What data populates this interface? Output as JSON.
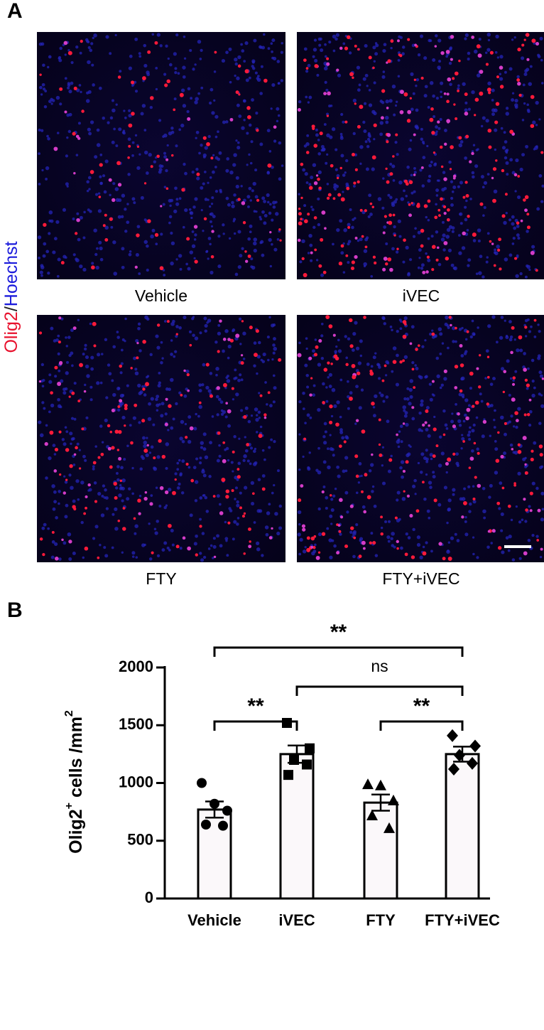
{
  "panel_a": {
    "label": "A",
    "stain_label": [
      "Olig2",
      "/",
      "Hoechst"
    ],
    "stain_colors": [
      "#e8112d",
      "#222222",
      "#1a1adb"
    ],
    "captions": [
      "Vehicle",
      "iVEC",
      "FTY",
      "FTY+iVEC"
    ]
  },
  "chart_data": {
    "type": "bar",
    "panel_label": "B",
    "ylabel": [
      "Olig2",
      "+",
      " cells /mm",
      "2"
    ],
    "categories": [
      "Vehicle",
      "iVEC",
      "FTY",
      "FTY+iVEC"
    ],
    "values": [
      770,
      1250,
      830,
      1250
    ],
    "errors": [
      70,
      75,
      70,
      65
    ],
    "points": [
      [
        1000,
        820,
        760,
        640,
        630
      ],
      [
        1520,
        1300,
        1200,
        1160,
        1070
      ],
      [
        990,
        980,
        850,
        720,
        610
      ],
      [
        1410,
        1320,
        1240,
        1170,
        1120
      ]
    ],
    "markers": [
      "circle",
      "square",
      "triangle",
      "diamond"
    ],
    "color": "#fbf8fa",
    "ylim": [
      0,
      2000
    ],
    "yticks": [
      0,
      500,
      1000,
      1500,
      2000
    ],
    "comparisons": [
      {
        "from": 0,
        "to": 3,
        "label": "**"
      },
      {
        "from": 1,
        "to": 3,
        "label": "ns"
      },
      {
        "from": 0,
        "to": 1,
        "label": "**"
      },
      {
        "from": 2,
        "to": 3,
        "label": "**"
      }
    ]
  }
}
